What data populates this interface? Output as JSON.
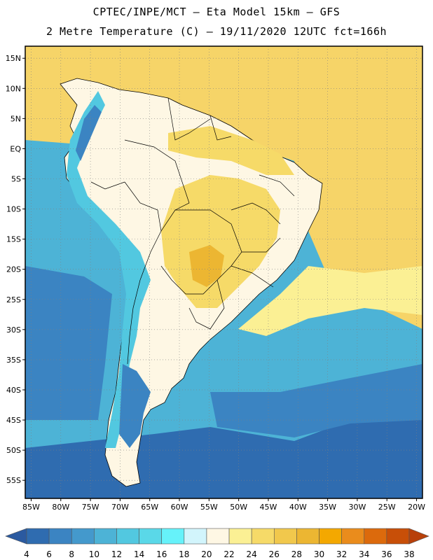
{
  "title": {
    "line1": "CPTEC/INPE/MCT –  Eta Model 15km – GFS",
    "line2": "2 Metre Temperature (C) – 19/11/2020 12UTC fct=166h"
  },
  "map": {
    "lon_range": [
      -86,
      -19
    ],
    "lat_range": [
      -58,
      17
    ],
    "lat_ticks": [
      {
        "lat": 15,
        "label": "15N"
      },
      {
        "lat": 10,
        "label": "10N"
      },
      {
        "lat": 5,
        "label": "5N"
      },
      {
        "lat": 0,
        "label": "EQ"
      },
      {
        "lat": -5,
        "label": "5S"
      },
      {
        "lat": -10,
        "label": "10S"
      },
      {
        "lat": -15,
        "label": "15S"
      },
      {
        "lat": -20,
        "label": "20S"
      },
      {
        "lat": -25,
        "label": "25S"
      },
      {
        "lat": -30,
        "label": "30S"
      },
      {
        "lat": -35,
        "label": "35S"
      },
      {
        "lat": -40,
        "label": "40S"
      },
      {
        "lat": -45,
        "label": "45S"
      },
      {
        "lat": -50,
        "label": "50S"
      },
      {
        "lat": -55,
        "label": "55S"
      }
    ],
    "lon_ticks": [
      {
        "lon": -85,
        "label": "85W"
      },
      {
        "lon": -80,
        "label": "80W"
      },
      {
        "lon": -75,
        "label": "75W"
      },
      {
        "lon": -70,
        "label": "70W"
      },
      {
        "lon": -65,
        "label": "65W"
      },
      {
        "lon": -60,
        "label": "60W"
      },
      {
        "lon": -55,
        "label": "55W"
      },
      {
        "lon": -50,
        "label": "50W"
      },
      {
        "lon": -45,
        "label": "45W"
      },
      {
        "lon": -40,
        "label": "40W"
      },
      {
        "lon": -35,
        "label": "35W"
      },
      {
        "lon": -30,
        "label": "30W"
      },
      {
        "lon": -25,
        "label": "25W"
      },
      {
        "lon": -20,
        "label": "20W"
      }
    ]
  },
  "colorbar": {
    "labels": [
      "4",
      "6",
      "8",
      "10",
      "12",
      "14",
      "16",
      "18",
      "20",
      "22",
      "24",
      "26",
      "28",
      "30",
      "32",
      "34",
      "36",
      "38"
    ],
    "colors": [
      "#2f6cb0",
      "#3b84c2",
      "#4499cc",
      "#4db3d6",
      "#52c8e0",
      "#5ad8e8",
      "#66f2fa",
      "#d2f5fc",
      "#fef7e4",
      "#fbf094",
      "#f6da68",
      "#f1c84c",
      "#ecb632",
      "#f4a800",
      "#ea8c1c",
      "#dc6a0c",
      "#c84f08"
    ],
    "low_color": "#2b5aa0",
    "high_color": "#b8400a"
  },
  "fields": {
    "ocean_tropical": "#f6d468",
    "ocean_south_warm": "#fbf094",
    "ocean_mid": "#4db3d6",
    "ocean_south": "#3b84c2",
    "ocean_far_south": "#2f6cb0",
    "land_main": "#fef7e4",
    "land_warm": "#f6da68",
    "land_hot": "#ecb632",
    "andes_cold": "#52c8e0",
    "andes_coldest": "#3b84c2"
  }
}
